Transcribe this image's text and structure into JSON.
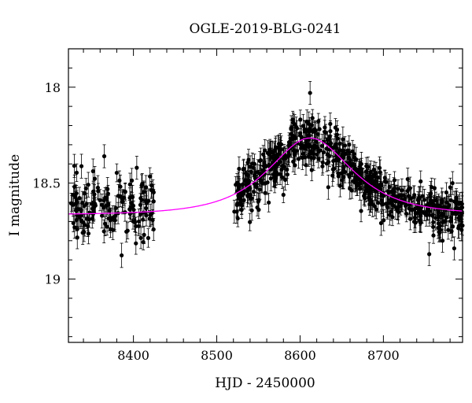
{
  "chart_data": {
    "type": "scatter",
    "title": "OGLE-2019-BLG-0241",
    "xlabel": "HJD - 2450000",
    "ylabel": "I magnitude",
    "xlim": [
      8322,
      8795
    ],
    "ylim": [
      19.33,
      17.8
    ],
    "y_inverted": true,
    "grid": false,
    "xticks": {
      "labeled": [
        8400,
        8500,
        8600,
        8700
      ],
      "major_step": 100,
      "minor_step": 20
    },
    "yticks": {
      "labeled": [
        18,
        18.5,
        19
      ],
      "labels": [
        "18",
        "18.5",
        "19"
      ],
      "major_step": 0.5,
      "minor_step": 0.1
    },
    "series": [
      {
        "kind": "data",
        "marker": "filled-circle",
        "color": "#000000",
        "segments": [
          {
            "x_start": 8325,
            "x_end": 8425,
            "y_baseline": 18.64,
            "scatter": 0.075,
            "n": 150,
            "err": 0.05
          },
          {
            "x_start": 8520,
            "x_end": 8795,
            "y_baseline": "model",
            "scatter": 0.06,
            "n": 620,
            "err": 0.05
          }
        ],
        "outliers": [
          {
            "x": 8329,
            "y": 18.41
          },
          {
            "x": 8365,
            "y": 18.36
          },
          {
            "x": 8404,
            "y": 18.42
          },
          {
            "x": 8612,
            "y": 18.03
          },
          {
            "x": 8755,
            "y": 18.87
          },
          {
            "x": 8771,
            "y": 18.8
          },
          {
            "x": 8785,
            "y": 18.84
          },
          {
            "x": 8783,
            "y": 18.5
          }
        ]
      },
      {
        "kind": "model",
        "color": "#ff00ff",
        "baseline_mag": 18.665,
        "peak_mag": 18.265,
        "t0": 8612,
        "tE": 65
      }
    ]
  }
}
